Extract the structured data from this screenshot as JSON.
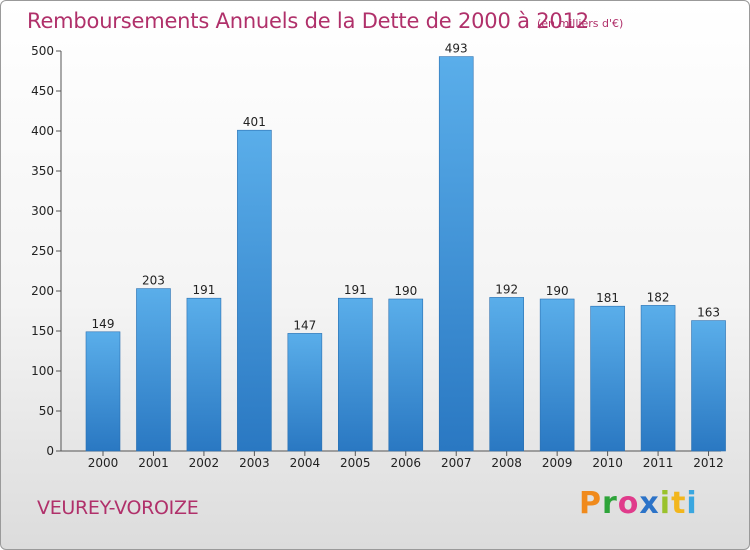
{
  "header": {
    "title": "Remboursements Annuels de la Dette de 2000 à 2012",
    "subtitle": "(en milliers d'€)"
  },
  "footer": {
    "commune": "VEUREY-VOROIZE",
    "logo": [
      "P",
      "r",
      "o",
      "x",
      "i",
      "t",
      "i"
    ]
  },
  "chart_data": {
    "type": "bar",
    "title": "Remboursements Annuels de la Dette de 2000 à 2012",
    "subtitle": "(en milliers d'€)",
    "categories": [
      "2000",
      "2001",
      "2002",
      "2003",
      "2004",
      "2005",
      "2006",
      "2007",
      "2008",
      "2009",
      "2010",
      "2011",
      "2012"
    ],
    "values": [
      149,
      203,
      191,
      401,
      147,
      191,
      190,
      493,
      192,
      190,
      181,
      182,
      163
    ],
    "data_labels": [
      "149",
      "203",
      "191",
      "401",
      "147",
      "191",
      "190",
      "493",
      "192",
      "190",
      "181",
      "182",
      "163"
    ],
    "yticks": [
      "0",
      "50",
      "100",
      "150",
      "200",
      "250",
      "300",
      "350",
      "400",
      "450",
      "500"
    ],
    "ylim": [
      0,
      500
    ],
    "grid": false,
    "bar_color": "#3f8fd6",
    "bar_color_dark": "#2a78c2",
    "text_color": "#b0306a"
  }
}
